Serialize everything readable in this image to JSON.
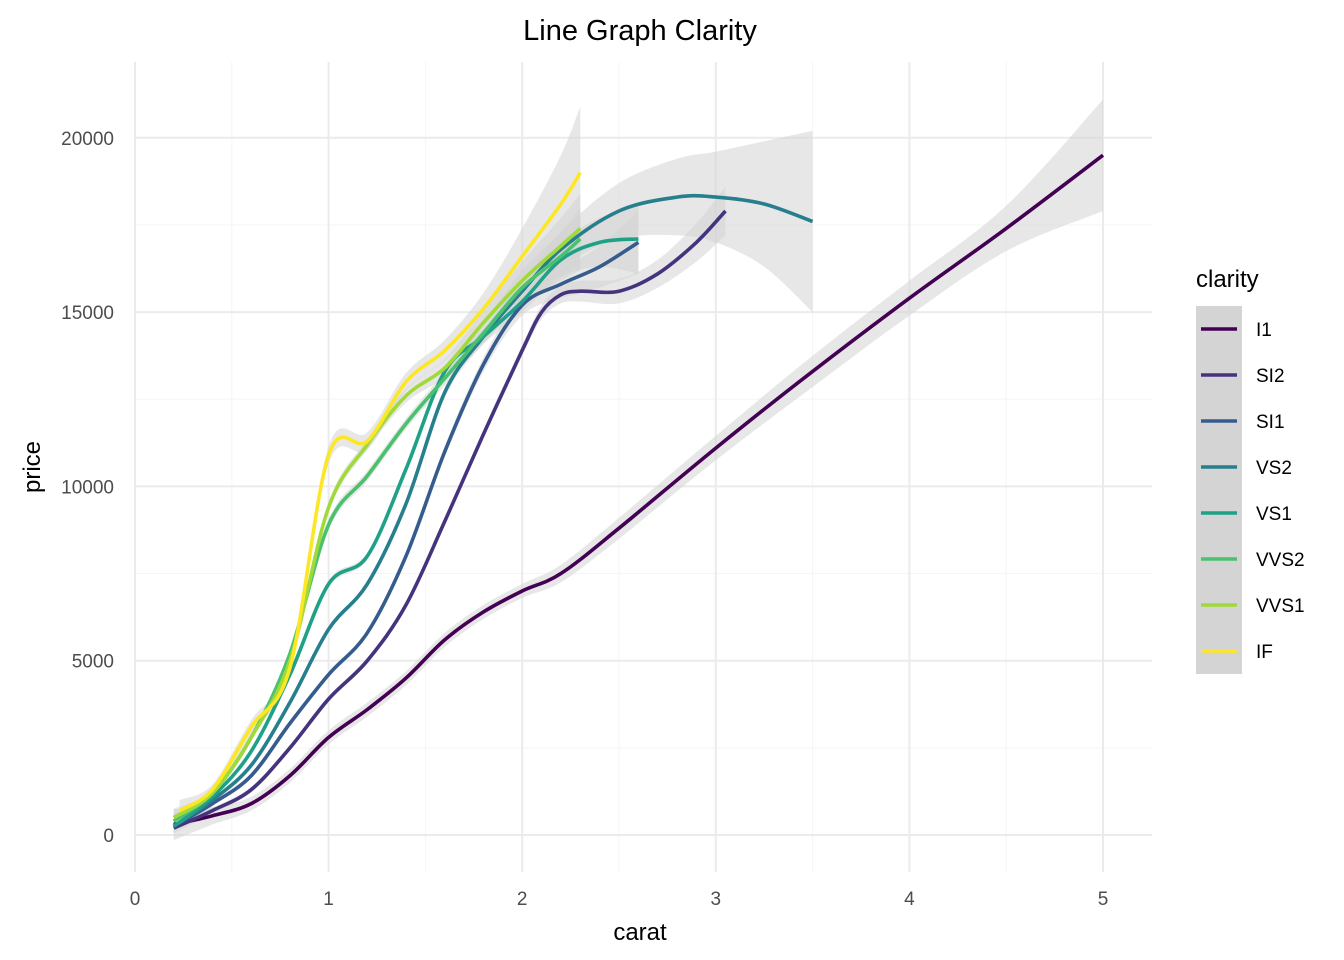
{
  "chart_data": {
    "type": "line",
    "title": "Line Graph Clarity",
    "xlabel": "carat",
    "ylabel": "price",
    "xlim": [
      0,
      5
    ],
    "ylim": [
      -1000,
      22000
    ],
    "x_ticks": [
      0,
      1,
      2,
      3,
      4,
      5
    ],
    "y_ticks": [
      0,
      5000,
      10000,
      15000,
      20000
    ],
    "grid": true,
    "smooth_confidence_band": true,
    "band_color": "#d4d4d4",
    "legend": {
      "title": "clarity",
      "position": "right"
    },
    "series": [
      {
        "name": "I1",
        "color": "#440154",
        "x": [
          0.2,
          0.4,
          0.6,
          0.8,
          1.0,
          1.2,
          1.4,
          1.6,
          1.8,
          2.0,
          2.2,
          2.5,
          3.0,
          3.5,
          4.0,
          4.5,
          5.0
        ],
        "y": [
          300,
          550,
          900,
          1700,
          2800,
          3600,
          4500,
          5600,
          6400,
          7000,
          7500,
          8800,
          11100,
          13300,
          15400,
          17400,
          19500
        ],
        "ci": [
          450,
          250,
          200,
          200,
          200,
          200,
          200,
          200,
          200,
          200,
          250,
          300,
          350,
          450,
          500,
          650,
          1600
        ]
      },
      {
        "name": "SI2",
        "color": "#46337e",
        "x": [
          0.2,
          0.4,
          0.6,
          0.8,
          1.0,
          1.2,
          1.4,
          1.6,
          1.8,
          2.0,
          2.1,
          2.2,
          2.3,
          2.5,
          2.7,
          2.9,
          3.05
        ],
        "y": [
          200,
          700,
          1300,
          2500,
          3900,
          5000,
          6600,
          9000,
          11500,
          13900,
          15000,
          15500,
          15600,
          15600,
          16100,
          17000,
          17900
        ],
        "ci": [
          150,
          80,
          80,
          80,
          80,
          80,
          80,
          100,
          120,
          150,
          200,
          250,
          300,
          350,
          400,
          550,
          700
        ]
      },
      {
        "name": "SI1",
        "color": "#365c8d",
        "x": [
          0.2,
          0.4,
          0.6,
          0.8,
          1.0,
          1.2,
          1.4,
          1.6,
          1.8,
          2.0,
          2.2,
          2.4,
          2.6
        ],
        "y": [
          250,
          900,
          1700,
          3200,
          4600,
          5800,
          8000,
          11000,
          13500,
          15200,
          15800,
          16300,
          17000
        ],
        "ci": [
          150,
          80,
          80,
          80,
          80,
          80,
          100,
          150,
          200,
          300,
          400,
          600,
          900
        ]
      },
      {
        "name": "VS2",
        "color": "#277f8e",
        "x": [
          0.2,
          0.4,
          0.6,
          0.8,
          1.0,
          1.2,
          1.4,
          1.6,
          1.8,
          2.0,
          2.2,
          2.5,
          2.8,
          3.0,
          3.25,
          3.5
        ],
        "y": [
          250,
          1000,
          2000,
          3800,
          5900,
          7200,
          9500,
          12700,
          14300,
          15600,
          16800,
          17900,
          18300,
          18300,
          18100,
          17600
        ],
        "ci": [
          150,
          80,
          80,
          80,
          80,
          80,
          100,
          150,
          200,
          300,
          500,
          800,
          1100,
          1300,
          1800,
          2600
        ]
      },
      {
        "name": "VS1",
        "color": "#1fa187",
        "x": [
          0.2,
          0.4,
          0.6,
          0.8,
          1.0,
          1.2,
          1.4,
          1.6,
          1.8,
          2.0,
          2.2,
          2.4,
          2.6
        ],
        "y": [
          250,
          1100,
          2400,
          4600,
          7200,
          8000,
          10500,
          13300,
          14300,
          15300,
          16500,
          17000,
          17100
        ],
        "ci": [
          150,
          80,
          80,
          80,
          100,
          100,
          120,
          150,
          200,
          300,
          500,
          700,
          1000
        ]
      },
      {
        "name": "VVS2",
        "color": "#4ac16d",
        "x": [
          0.2,
          0.4,
          0.6,
          0.8,
          1.0,
          1.2,
          1.4,
          1.6,
          1.8,
          2.0,
          2.2,
          2.3
        ],
        "y": [
          400,
          1200,
          2800,
          5200,
          8900,
          10300,
          11800,
          13100,
          14400,
          15700,
          16600,
          17100
        ],
        "ci": [
          200,
          100,
          100,
          120,
          150,
          150,
          150,
          200,
          300,
          500,
          700,
          900
        ]
      },
      {
        "name": "VVS1",
        "color": "#a0da39",
        "x": [
          0.2,
          0.4,
          0.6,
          0.8,
          1.0,
          1.2,
          1.4,
          1.6,
          1.8,
          2.0,
          2.2,
          2.3
        ],
        "y": [
          500,
          1200,
          2800,
          5000,
          9400,
          11200,
          12600,
          13400,
          14700,
          15900,
          16900,
          17400
        ],
        "ci": [
          250,
          100,
          100,
          120,
          150,
          150,
          200,
          250,
          350,
          550,
          800,
          1000
        ]
      },
      {
        "name": "IF",
        "color": "#fde725",
        "x": [
          0.23,
          0.4,
          0.6,
          0.8,
          1.0,
          1.2,
          1.4,
          1.6,
          1.8,
          2.0,
          2.2,
          2.3
        ],
        "y": [
          700,
          1300,
          3100,
          4800,
          10900,
          11300,
          13000,
          13900,
          15100,
          16600,
          18100,
          19000
        ],
        "ci": [
          300,
          150,
          200,
          150,
          250,
          250,
          250,
          300,
          450,
          800,
          1400,
          1900
        ]
      }
    ]
  }
}
